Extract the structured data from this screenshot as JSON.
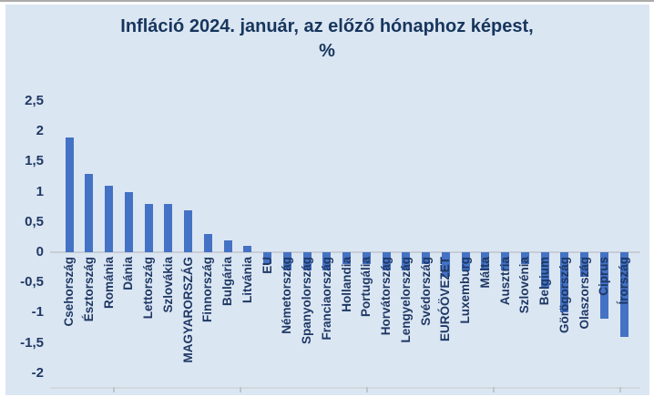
{
  "title": {
    "line1": "Infláció 2024. január, az előző hónaphoz képest,",
    "line2": "%"
  },
  "chart_data": {
    "type": "bar",
    "title": "Infláció 2024. január, az előző hónaphoz képest, %",
    "categories": [
      "Csehország",
      "Észtország",
      "Románia",
      "Dánia",
      "Lettország",
      "Szlovákia",
      "MAGYARORSZÁG",
      "Finnország",
      "Bulgária",
      "Litvánia",
      "EU",
      "Németország",
      "Spanyolország",
      "Franciaország",
      "Hollandia",
      "Portugália",
      "Horvátország",
      "Lengyelország",
      "Svédország",
      "EURÓÖVEZET",
      "Luxemburg",
      "Málta",
      "Ausztria",
      "Szlovénia",
      "Belgium",
      "Görögország",
      "Olaszország",
      "Ciprus",
      "Írország"
    ],
    "values": [
      1.9,
      1.3,
      1.1,
      1.0,
      0.8,
      0.8,
      0.7,
      0.3,
      0.2,
      0.1,
      -0.2,
      -0.3,
      -0.3,
      -0.3,
      -0.2,
      -0.2,
      -0.3,
      -0.3,
      -0.2,
      -0.4,
      -0.3,
      -0.3,
      -0.3,
      -0.2,
      -0.6,
      -1.0,
      -0.4,
      -1.1,
      -1.4
    ],
    "xlabel": "",
    "ylabel": "",
    "ylim": [
      -2,
      2.5
    ],
    "ytick_values": [
      2.5,
      2,
      1.5,
      1,
      0.5,
      0,
      -0.5,
      -1,
      -1.5,
      -2
    ],
    "ytick_labels": [
      "2,5",
      "2",
      "1,5",
      "1",
      "0,5",
      "0",
      "-0,5",
      "-1",
      "-1,5",
      "-2"
    ],
    "decimal_separator": ",",
    "grid": false,
    "legend": false,
    "bar_color": "#4472c4",
    "background_color": "#dbe6f3",
    "text_color": "#1f3864",
    "title_color": "#17365d",
    "axis_line_color": "#c7cdd5"
  }
}
